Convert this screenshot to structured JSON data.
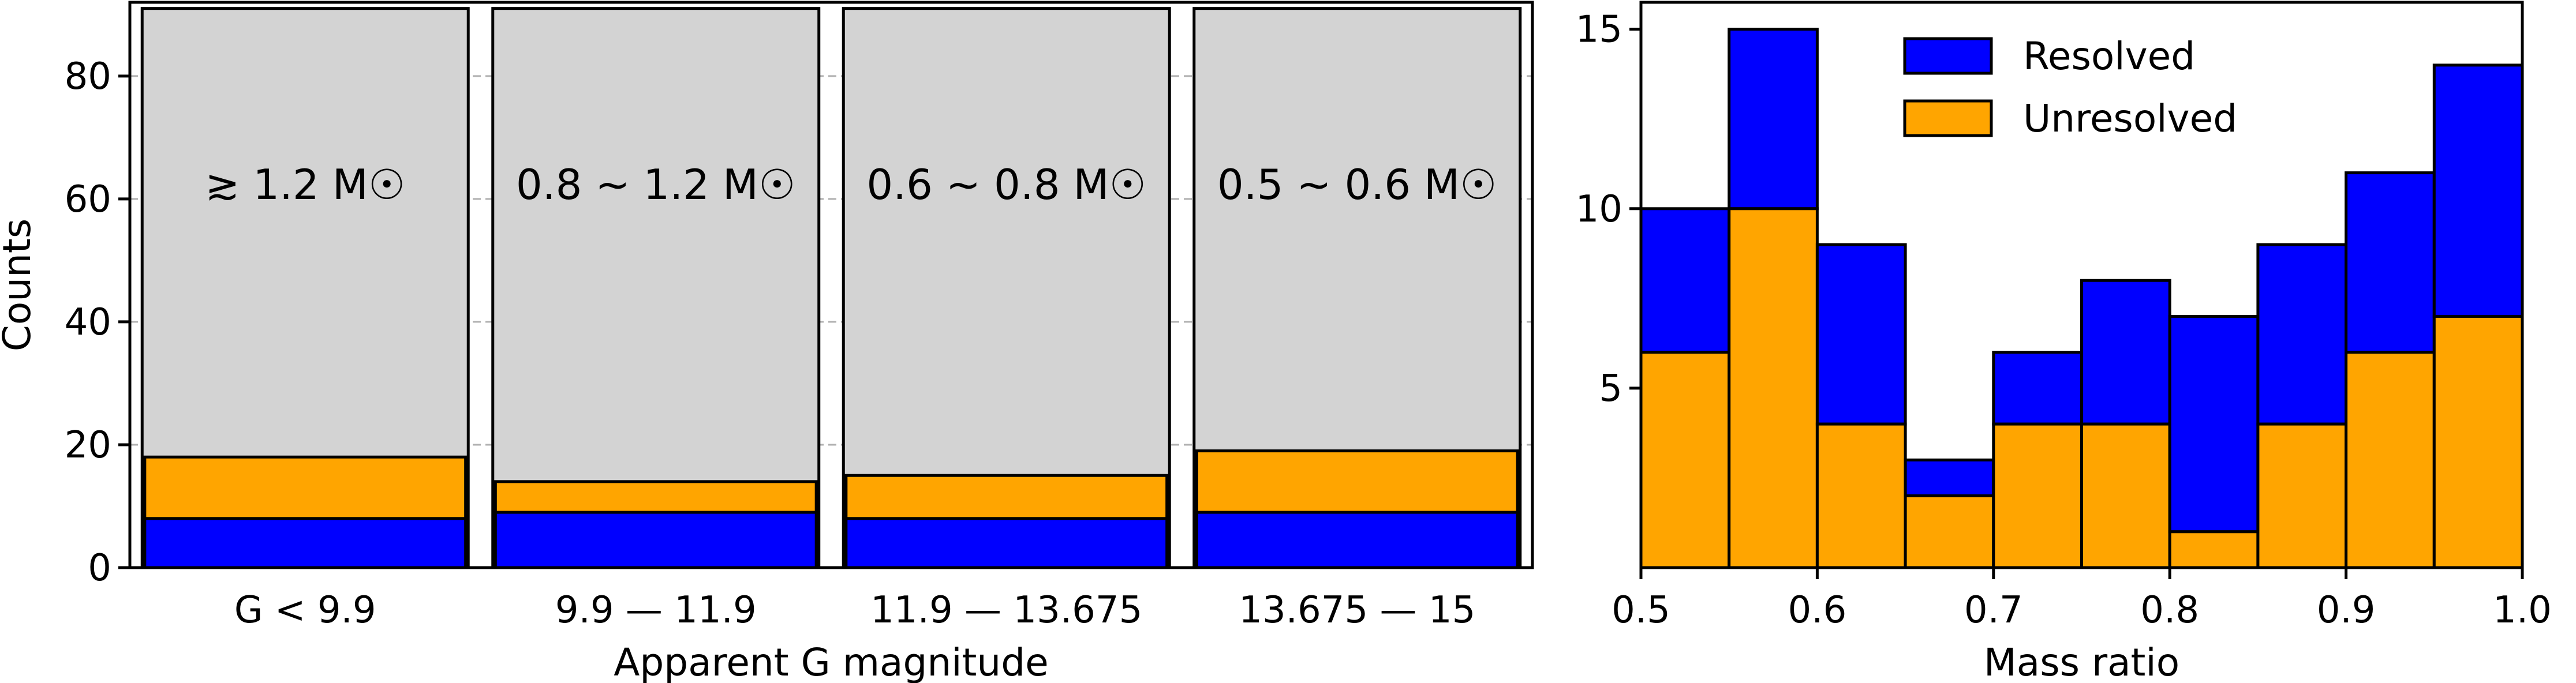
{
  "chart_data": [
    {
      "type": "bar",
      "xlabel": "Apparent G magnitude",
      "ylabel": "Counts",
      "ylim": [
        0,
        92
      ],
      "yticks": [
        "0",
        "20",
        "40",
        "60",
        "80"
      ],
      "grid": "horizontal dashed",
      "categories": [
        "G < 9.9",
        "9.9 — 11.9",
        "11.9 — 13.675",
        "13.675 — 15"
      ],
      "annotations": [
        "≳ 1.2 M☉",
        "0.8 ~ 1.2 M☉",
        "0.6 ~ 0.8 M☉",
        "0.5 ~ 0.6 M☉"
      ],
      "series": [
        {
          "values": [
            91,
            91,
            91,
            91
          ],
          "color": "#d3d3d3"
        },
        {
          "values": [
            18,
            14,
            15,
            19
          ],
          "color": "#ffa500"
        },
        {
          "values": [
            8,
            9,
            8,
            9
          ],
          "color": "#0000ff"
        }
      ]
    },
    {
      "type": "bar",
      "xlabel": "Mass ratio",
      "ylabel": "",
      "xlim": [
        0.5,
        1.0
      ],
      "ylim": [
        0,
        15.75
      ],
      "xticks": [
        "0.5",
        "0.6",
        "0.7",
        "0.8",
        "0.9",
        "1.0"
      ],
      "yticks": [
        "5",
        "10",
        "15"
      ],
      "bin_edges": [
        0.5,
        0.55,
        0.6,
        0.65,
        0.7,
        0.75,
        0.8,
        0.85,
        0.9,
        0.95,
        1.0
      ],
      "legend_position": "top-center",
      "series": [
        {
          "name": "Unresolved",
          "values": [
            6,
            10,
            4,
            2,
            4,
            4,
            1,
            4,
            6,
            7
          ],
          "color": "#ffa500"
        },
        {
          "name": "Resolved",
          "values": [
            4,
            5,
            5,
            1,
            2,
            4,
            6,
            5,
            5,
            7
          ],
          "color": "#0000ff"
        }
      ]
    }
  ]
}
